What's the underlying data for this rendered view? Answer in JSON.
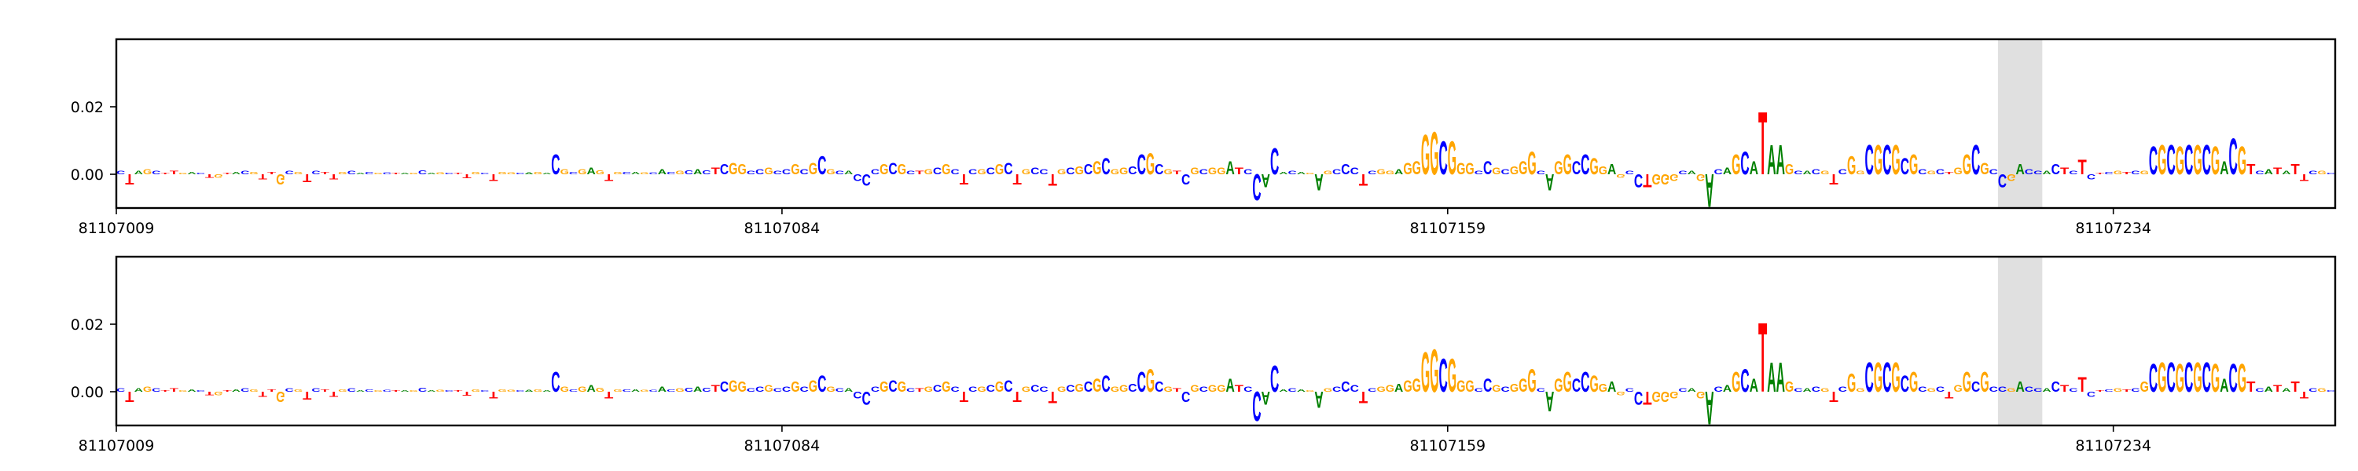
{
  "chart_data": [
    {
      "type": "logo",
      "sequence": [
        "C",
        "T",
        "A",
        "G",
        "C",
        "T",
        "T",
        "G",
        "A",
        "C",
        "T",
        "G",
        "T",
        "A",
        "C",
        "G",
        "T",
        "T",
        "G",
        "C",
        "G",
        "T",
        "C",
        "T",
        "T",
        "G",
        "C",
        "A",
        "C",
        "G",
        "C",
        "T",
        "A",
        "G",
        "C",
        "A",
        "G",
        "C",
        "T",
        "T",
        "G",
        "C",
        "T",
        "G",
        "G",
        "C",
        "A",
        "G",
        "A",
        "C",
        "G",
        "C",
        "G",
        "A",
        "G",
        "T",
        "G",
        "C",
        "A",
        "G",
        "C",
        "A",
        "C",
        "G",
        "C",
        "A",
        "C",
        "T",
        "C",
        "G",
        "G",
        "C",
        "C",
        "G",
        "C",
        "C",
        "G",
        "C",
        "G",
        "C",
        "G",
        "C",
        "A",
        "C",
        "C",
        "C",
        "G",
        "C",
        "G",
        "C",
        "T",
        "G",
        "C",
        "G",
        "C",
        "T",
        "C",
        "G",
        "C",
        "G",
        "C",
        "T",
        "G",
        "C",
        "C",
        "T",
        "G",
        "C",
        "G",
        "C",
        "G",
        "C",
        "G",
        "G",
        "C",
        "C",
        "G",
        "C",
        "G",
        "T",
        "C",
        "G",
        "C",
        "G",
        "G",
        "A",
        "T",
        "C",
        "C",
        "A",
        "C",
        "A",
        "C",
        "A",
        "G",
        "A",
        "G",
        "C",
        "C",
        "C",
        "T",
        "C",
        "G",
        "G",
        "A",
        "G",
        "G",
        "G",
        "G",
        "C",
        "G",
        "G",
        "G",
        "C",
        "C",
        "G",
        "C",
        "G",
        "G",
        "G",
        "C",
        "A",
        "G",
        "G",
        "C",
        "C",
        "G",
        "G",
        "A",
        "G",
        "C",
        "C",
        "T",
        "G",
        "G",
        "G",
        "C",
        "A",
        "G",
        "A",
        "C",
        "A",
        "G",
        "C",
        "A",
        "T",
        "A",
        "A",
        "G",
        "C",
        "A",
        "C",
        "G",
        "T",
        "C",
        "G",
        "G",
        "C",
        "G",
        "C",
        "G",
        "C",
        "G",
        "C",
        "G",
        "C",
        "T",
        "G",
        "G",
        "C",
        "G",
        "C",
        "C",
        "G",
        "A",
        "C",
        "C",
        "A",
        "C",
        "T",
        "C",
        "T",
        "C",
        "T",
        "C",
        "G",
        "T",
        "C",
        "G",
        "C",
        "G",
        "C",
        "G",
        "C",
        "G",
        "C",
        "G",
        "A",
        "C",
        "G",
        "T",
        "C",
        "A",
        "T",
        "A",
        "T",
        "T",
        "C",
        "G",
        "C"
      ],
      "values": [
        0.001,
        -0.003,
        0.001,
        0.0015,
        0.001,
        0.0005,
        0.001,
        0.0005,
        0.0008,
        0.0005,
        -0.001,
        -0.001,
        0.0005,
        0.0008,
        0.001,
        0.0008,
        -0.0015,
        0.0008,
        -0.003,
        0.001,
        0.0008,
        -0.0025,
        0.001,
        0.0008,
        -0.0015,
        0.0008,
        0.001,
        0.0005,
        0.0008,
        0.0005,
        0.0006,
        0.0005,
        0.0004,
        0.0005,
        0.0012,
        0.0005,
        0.0006,
        0.0004,
        0.0004,
        -0.0012,
        0.0008,
        0.0005,
        -0.002,
        0.0008,
        0.0006,
        0.0005,
        0.0006,
        0.0008,
        0.0005,
        0.006,
        0.0015,
        0.0008,
        0.0015,
        0.002,
        0.0012,
        -0.002,
        0.0008,
        0.0008,
        0.0008,
        0.0006,
        0.0006,
        0.0015,
        0.0008,
        0.001,
        0.0012,
        0.0015,
        0.0012,
        0.002,
        0.003,
        0.0035,
        0.003,
        0.001,
        0.0015,
        0.002,
        0.001,
        0.0015,
        0.003,
        0.0015,
        0.0035,
        0.0055,
        0.0015,
        0.001,
        0.001,
        -0.002,
        -0.0035,
        0.0015,
        0.003,
        0.0035,
        0.003,
        0.001,
        0.001,
        0.0015,
        0.002,
        0.003,
        0.0015,
        -0.003,
        0.0015,
        0.0015,
        0.002,
        0.003,
        0.0035,
        -0.003,
        0.0015,
        0.002,
        0.0015,
        -0.0035,
        0.0015,
        0.002,
        0.0025,
        0.003,
        0.004,
        0.005,
        0.0015,
        0.002,
        0.0025,
        0.006,
        0.0065,
        0.003,
        0.0015,
        0.001,
        -0.003,
        0.002,
        0.0015,
        0.002,
        0.002,
        0.004,
        0.002,
        0.0015,
        -0.008,
        -0.004,
        0.008,
        0.0008,
        0.001,
        0.0008,
        0.0005,
        -0.005,
        0.001,
        0.0015,
        0.003,
        0.002,
        -0.0035,
        0.001,
        0.0015,
        0.001,
        0.0015,
        0.0035,
        0.004,
        0.012,
        0.013,
        0.01,
        0.01,
        0.0035,
        0.0035,
        0.001,
        0.004,
        0.002,
        0.0015,
        0.0025,
        0.004,
        0.007,
        0.001,
        -0.005,
        0.004,
        0.006,
        0.004,
        0.006,
        0.005,
        0.0025,
        0.003,
        -0.001,
        0.001,
        -0.004,
        -0.004,
        -0.003,
        -0.003,
        -0.002,
        0.001,
        0.001,
        -0.002,
        -0.01,
        0.0015,
        0.002,
        0.006,
        0.007,
        0.004,
        0.019,
        0.009,
        0.009,
        0.003,
        0.001,
        0.001,
        0.0015,
        0.001,
        -0.003,
        0.0015,
        0.0055,
        0.001,
        0.009,
        0.009,
        0.009,
        0.009,
        0.005,
        0.006,
        0.0015,
        0.001,
        0.0015,
        0.0008,
        0.002,
        0.006,
        0.009,
        0.0035,
        0.0015,
        -0.004,
        -0.002,
        0.003,
        0.0015,
        0.001,
        0.001,
        0.003,
        0.002,
        0.001,
        0.0045,
        -0.0015,
        0.0005,
        0.0008,
        0.001,
        0.0008,
        0.001,
        0.001,
        0.0085,
        0.009,
        0.009,
        0.0085,
        0.009,
        0.009,
        0.009,
        0.0085,
        0.004,
        0.011,
        0.0085,
        0.003,
        0.001,
        0.0015,
        0.002,
        0.001,
        0.003,
        -0.002,
        0.001,
        0.001,
        0.0005
      ],
      "highlight": [
        81107221,
        81107226
      ],
      "highlight_color": "#e0e0e0",
      "colors": {
        "A": "#008000",
        "C": "#0000ff",
        "G": "#ffa500",
        "T": "#ff0000"
      },
      "xlim": [
        81107009,
        81107259
      ],
      "xticks": [
        81107009,
        81107084,
        81107159,
        81107234
      ],
      "ylim": [
        -0.01,
        0.04
      ],
      "yticks": [
        {
          "value": 0,
          "label": "0.00"
        },
        {
          "value": 0.02,
          "label": "0.02"
        }
      ]
    },
    {
      "type": "logo",
      "sequence": [
        "C",
        "T",
        "A",
        "G",
        "C",
        "T",
        "T",
        "G",
        "A",
        "C",
        "T",
        "G",
        "T",
        "A",
        "C",
        "G",
        "T",
        "T",
        "G",
        "C",
        "G",
        "T",
        "C",
        "T",
        "T",
        "G",
        "C",
        "A",
        "C",
        "G",
        "C",
        "T",
        "A",
        "G",
        "C",
        "A",
        "G",
        "C",
        "T",
        "T",
        "G",
        "C",
        "T",
        "G",
        "G",
        "C",
        "A",
        "G",
        "A",
        "C",
        "G",
        "C",
        "G",
        "A",
        "G",
        "T",
        "G",
        "C",
        "A",
        "G",
        "C",
        "A",
        "C",
        "G",
        "C",
        "A",
        "C",
        "T",
        "C",
        "G",
        "G",
        "C",
        "C",
        "G",
        "C",
        "C",
        "G",
        "C",
        "G",
        "C",
        "G",
        "C",
        "A",
        "C",
        "C",
        "C",
        "G",
        "C",
        "G",
        "C",
        "T",
        "G",
        "C",
        "G",
        "C",
        "T",
        "C",
        "G",
        "C",
        "G",
        "C",
        "T",
        "G",
        "C",
        "C",
        "T",
        "G",
        "C",
        "G",
        "C",
        "G",
        "C",
        "G",
        "G",
        "C",
        "C",
        "G",
        "C",
        "G",
        "T",
        "C",
        "G",
        "C",
        "G",
        "G",
        "A",
        "T",
        "C",
        "C",
        "A",
        "C",
        "A",
        "C",
        "A",
        "G",
        "A",
        "G",
        "C",
        "C",
        "C",
        "T",
        "C",
        "G",
        "G",
        "A",
        "G",
        "G",
        "G",
        "G",
        "C",
        "G",
        "G",
        "G",
        "C",
        "C",
        "G",
        "C",
        "G",
        "G",
        "G",
        "C",
        "A",
        "G",
        "G",
        "C",
        "C",
        "G",
        "G",
        "A",
        "G",
        "C",
        "C",
        "T",
        "G",
        "G",
        "G",
        "C",
        "A",
        "G",
        "A",
        "C",
        "A",
        "G",
        "C",
        "A",
        "T",
        "A",
        "A",
        "G",
        "C",
        "A",
        "C",
        "G",
        "T",
        "C",
        "G",
        "G",
        "C",
        "G",
        "C",
        "G",
        "C",
        "G",
        "C",
        "G",
        "C",
        "T",
        "G",
        "G",
        "C",
        "G",
        "C",
        "C",
        "G",
        "A",
        "C",
        "C",
        "A",
        "C",
        "T",
        "C",
        "T",
        "C",
        "T",
        "C",
        "G",
        "T",
        "C",
        "G",
        "C",
        "G",
        "C",
        "G",
        "C",
        "G",
        "C",
        "G",
        "A",
        "C",
        "G",
        "T",
        "C",
        "A",
        "T",
        "A",
        "T",
        "T",
        "C",
        "G",
        "C"
      ],
      "values": [
        0.001,
        -0.003,
        0.001,
        0.0015,
        0.001,
        0.0005,
        0.001,
        0.0005,
        0.0008,
        0.0005,
        -0.001,
        -0.001,
        0.0005,
        0.0008,
        0.001,
        0.0008,
        -0.0015,
        0.0008,
        -0.003,
        0.001,
        0.0008,
        -0.0025,
        0.001,
        0.0008,
        -0.0015,
        0.0008,
        0.001,
        0.0005,
        0.0008,
        0.0005,
        0.0006,
        0.0005,
        0.0004,
        0.0005,
        0.0012,
        0.0005,
        0.0006,
        0.0004,
        0.0004,
        -0.0012,
        0.0008,
        0.0005,
        -0.002,
        0.0008,
        0.0006,
        0.0005,
        0.0006,
        0.0008,
        0.0005,
        0.006,
        0.0015,
        0.0008,
        0.0015,
        0.002,
        0.0012,
        -0.002,
        0.0008,
        0.0008,
        0.0008,
        0.0006,
        0.0006,
        0.0015,
        0.0008,
        0.001,
        0.0012,
        0.0015,
        0.0012,
        0.002,
        0.003,
        0.0035,
        0.003,
        0.001,
        0.0015,
        0.002,
        0.001,
        0.0015,
        0.003,
        0.0015,
        0.0035,
        0.005,
        0.0015,
        0.001,
        0.001,
        -0.002,
        -0.004,
        0.0015,
        0.003,
        0.0035,
        0.003,
        0.001,
        0.001,
        0.0015,
        0.002,
        0.003,
        0.0015,
        -0.003,
        0.0015,
        0.0015,
        0.002,
        0.003,
        0.0035,
        -0.003,
        0.0015,
        0.002,
        0.0015,
        -0.0035,
        0.0015,
        0.002,
        0.0025,
        0.003,
        0.004,
        0.005,
        0.0015,
        0.002,
        0.0025,
        0.006,
        0.007,
        0.003,
        0.0015,
        0.001,
        -0.003,
        0.002,
        0.0015,
        0.002,
        0.002,
        0.004,
        0.002,
        0.0015,
        -0.009,
        -0.004,
        0.008,
        0.0008,
        0.001,
        0.0008,
        0.0005,
        -0.005,
        0.001,
        0.0015,
        0.003,
        0.002,
        -0.0035,
        0.001,
        0.0015,
        0.002,
        0.0025,
        0.0035,
        0.004,
        0.012,
        0.013,
        0.01,
        0.01,
        0.0035,
        0.0035,
        0.001,
        0.004,
        0.002,
        0.0015,
        0.0025,
        0.004,
        0.007,
        0.001,
        -0.006,
        0.004,
        0.006,
        0.004,
        0.006,
        0.005,
        0.0025,
        0.003,
        -0.001,
        0.001,
        -0.004,
        -0.004,
        -0.003,
        -0.003,
        -0.002,
        0.001,
        0.001,
        -0.002,
        -0.01,
        0.0015,
        0.002,
        0.006,
        0.007,
        0.004,
        0.021,
        0.009,
        0.009,
        0.003,
        0.001,
        0.001,
        0.0015,
        0.001,
        -0.003,
        0.0015,
        0.0055,
        0.001,
        0.009,
        0.009,
        0.009,
        0.009,
        0.005,
        0.006,
        0.0015,
        0.001,
        0.0015,
        -0.002,
        0.002,
        0.006,
        0.003,
        0.006,
        0.0015,
        0.0015,
        0.001,
        0.003,
        0.0015,
        0.001,
        0.001,
        0.003,
        0.002,
        0.001,
        0.0045,
        -0.0015,
        0.0005,
        0.0008,
        0.001,
        0.0008,
        0.001,
        0.003,
        0.0085,
        0.009,
        0.009,
        0.0085,
        0.009,
        0.009,
        0.009,
        0.0085,
        0.004,
        0.0085,
        0.0085,
        0.003,
        0.001,
        0.0015,
        0.002,
        0.001,
        0.003,
        -0.002,
        0.001,
        0.001,
        0.0005
      ],
      "highlight": [
        81107221,
        81107226
      ],
      "highlight_color": "#e0e0e0",
      "colors": {
        "A": "#008000",
        "C": "#0000ff",
        "G": "#ffa500",
        "T": "#ff0000"
      },
      "xlim": [
        81107009,
        81107259
      ],
      "xticks": [
        81107009,
        81107084,
        81107159,
        81107234
      ],
      "ylim": [
        -0.01,
        0.04
      ],
      "yticks": [
        {
          "value": 0,
          "label": "0.00"
        },
        {
          "value": 0.02,
          "label": "0.02"
        }
      ]
    }
  ]
}
